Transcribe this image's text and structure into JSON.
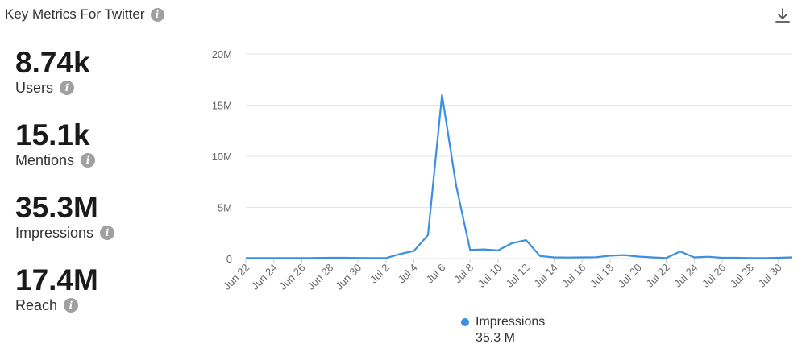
{
  "header": {
    "title": "Key Metrics For Twitter",
    "info_icon": "info-icon",
    "download_icon": "download-icon"
  },
  "metrics": [
    {
      "value": "8.74k",
      "label": "Users"
    },
    {
      "value": "15.1k",
      "label": "Mentions"
    },
    {
      "value": "35.3M",
      "label": "Impressions"
    },
    {
      "value": "17.4M",
      "label": "Reach"
    }
  ],
  "colors": {
    "series": "#3b8fe0",
    "grid": "#e6e6e6",
    "axis_text": "#666666"
  },
  "legend": {
    "name": "Impressions",
    "total": "35.3 M"
  },
  "chart_data": {
    "type": "line",
    "x": [
      "Jun 22",
      "Jun 23",
      "Jun 24",
      "Jun 25",
      "Jun 26",
      "Jun 27",
      "Jun 28",
      "Jun 29",
      "Jun 30",
      "Jul 1",
      "Jul 2",
      "Jul 3",
      "Jul 4",
      "Jul 5",
      "Jul 6",
      "Jul 7",
      "Jul 8",
      "Jul 9",
      "Jul 10",
      "Jul 11",
      "Jul 12",
      "Jul 13",
      "Jul 14",
      "Jul 15",
      "Jul 16",
      "Jul 17",
      "Jul 18",
      "Jul 19",
      "Jul 20",
      "Jul 21",
      "Jul 22",
      "Jul 23",
      "Jul 24",
      "Jul 25",
      "Jul 26",
      "Jul 27",
      "Jul 28",
      "Jul 29",
      "Jul 30",
      "Jul 31"
    ],
    "x_tick_labels": [
      "Jun 22",
      "Jun 24",
      "Jun 26",
      "Jun 28",
      "Jun 30",
      "Jul 2",
      "Jul 4",
      "Jul 6",
      "Jul 8",
      "Jul 10",
      "Jul 12",
      "Jul 14",
      "Jul 16",
      "Jul 18",
      "Jul 20",
      "Jul 22",
      "Jul 24",
      "Jul 26",
      "Jul 28",
      "Jul 30"
    ],
    "series": [
      {
        "name": "Impressions",
        "values": [
          0.05,
          0.05,
          0.05,
          0.05,
          0.05,
          0.06,
          0.08,
          0.08,
          0.06,
          0.05,
          0.05,
          0.45,
          0.75,
          2.3,
          16.0,
          7.2,
          0.85,
          0.9,
          0.8,
          1.5,
          1.8,
          0.25,
          0.12,
          0.1,
          0.12,
          0.13,
          0.28,
          0.35,
          0.2,
          0.12,
          0.05,
          0.7,
          0.12,
          0.18,
          0.08,
          0.08,
          0.05,
          0.05,
          0.08,
          0.12
        ]
      }
    ],
    "y_ticks": [
      "0",
      "5M",
      "10M",
      "15M",
      "20M"
    ],
    "ylim": [
      0,
      20
    ],
    "y_unit": "M",
    "grid": true,
    "legend_position": "bottom-center"
  }
}
